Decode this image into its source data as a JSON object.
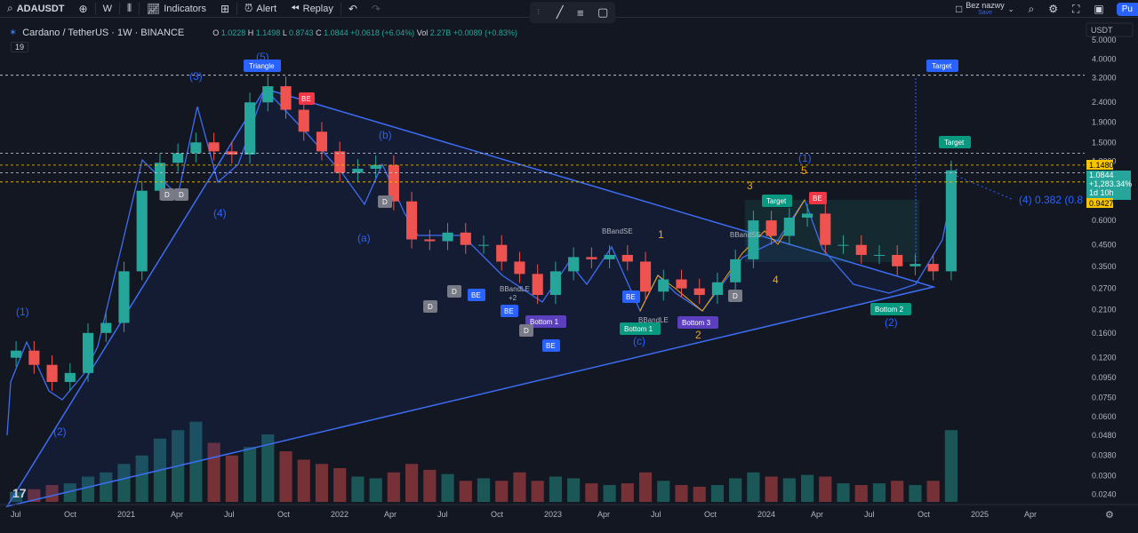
{
  "toolbar": {
    "symbol": "ADAUSDT",
    "interval": "W",
    "indicators_label": "Indicators",
    "alert_label": "Alert",
    "replay_label": "Replay",
    "layout_name": "Bez nazwy",
    "save_label": "Save",
    "publish_label": "Pu"
  },
  "legend": {
    "title": "Cardano / TetherUS · 1W · BINANCE",
    "o_label": "O",
    "o": "1.0228",
    "h_label": "H",
    "h": "1.1498",
    "l_label": "L",
    "l": "0.8743",
    "c_label": "C",
    "c": "1.0844",
    "change": "+0.0618 (+6.04%)",
    "vol_label": "Vol",
    "vol": "2.27B",
    "vol_change": "+0.0089 (+0.83%)",
    "indicator_count": "19"
  },
  "price_axis": {
    "currency": "USDT",
    "ticks": [
      "5.0000",
      "4.0000",
      "3.2000",
      "2.4000",
      "1.9000",
      "1.5000",
      "1.2000",
      "0.6000",
      "0.4500",
      "0.3500",
      "0.2700",
      "0.2100",
      "0.1600",
      "0.1200",
      "0.0950",
      "0.0750",
      "0.0600",
      "0.0480",
      "0.0380",
      "0.0300",
      "0.0240"
    ],
    "badges": {
      "upper": "1.1480",
      "last": "1.0844",
      "pct": "+1,283.34%",
      "countdown": "1d 10h",
      "lower": "0.9427"
    }
  },
  "time_axis": {
    "labels": [
      "Jul",
      "Oct",
      "2021",
      "Apr",
      "Jul",
      "Oct",
      "2022",
      "Apr",
      "Jul",
      "Oct",
      "2023",
      "Apr",
      "Jul",
      "Oct",
      "2024",
      "Apr",
      "Jul",
      "Oct",
      "2025",
      "Apr"
    ]
  },
  "annotations": {
    "wave_labels": [
      "(3)",
      "(5)",
      "(b)",
      "(4)",
      "(a)",
      "(1)",
      "(2)",
      "(c)",
      "(1)",
      "(2)"
    ],
    "orange_labels": [
      "1",
      "2",
      "3",
      "4",
      "5"
    ],
    "tags": {
      "triangle": "Triangle",
      "target_top": "Target",
      "target_mid": "Target",
      "target_small": "Target",
      "bottom1": "Bottom 1",
      "bottom2": "Bottom 2",
      "bottom3": "Bottom 3",
      "bottom_teal": "Bottom 1",
      "be": "BE",
      "d": "D",
      "bbandle": "BBandLE",
      "bbandse": "BBandSE",
      "plus2": "+2",
      "fib_label": "(4) 0.382 (0.8"
    }
  },
  "chart_data": {
    "type": "candlestick",
    "symbol": "Cardano / TetherUS",
    "interval": "1W",
    "exchange": "BINANCE",
    "y_scale": "log",
    "ylim": [
      0.022,
      5.6
    ],
    "last": {
      "open": 1.0228,
      "high": 1.1498,
      "low": 0.8743,
      "close": 1.0844
    },
    "x": [
      "2020-07",
      "2020-08",
      "2020-09",
      "2020-10",
      "2020-11",
      "2020-12",
      "2021-01",
      "2021-02",
      "2021-03",
      "2021-04",
      "2021-05",
      "2021-06",
      "2021-07",
      "2021-08",
      "2021-09",
      "2021-10",
      "2021-11",
      "2021-12",
      "2022-01",
      "2022-02",
      "2022-03",
      "2022-04",
      "2022-05",
      "2022-06",
      "2022-07",
      "2022-08",
      "2022-09",
      "2022-10",
      "2022-11",
      "2022-12",
      "2023-01",
      "2023-02",
      "2023-03",
      "2023-04",
      "2023-05",
      "2023-06",
      "2023-07",
      "2023-08",
      "2023-09",
      "2023-10",
      "2023-11",
      "2023-12",
      "2024-01",
      "2024-02",
      "2024-03",
      "2024-04",
      "2024-05",
      "2024-06",
      "2024-07",
      "2024-08",
      "2024-09",
      "2024-10",
      "2024-11"
    ],
    "close": [
      0.13,
      0.11,
      0.09,
      0.1,
      0.16,
      0.18,
      0.33,
      0.85,
      1.18,
      1.32,
      1.5,
      1.35,
      1.3,
      2.4,
      2.9,
      2.2,
      1.7,
      1.35,
      1.05,
      1.1,
      1.15,
      0.75,
      0.48,
      0.47,
      0.52,
      0.45,
      0.45,
      0.37,
      0.32,
      0.25,
      0.33,
      0.39,
      0.38,
      0.4,
      0.37,
      0.26,
      0.3,
      0.27,
      0.25,
      0.29,
      0.38,
      0.6,
      0.5,
      0.62,
      0.65,
      0.45,
      0.45,
      0.4,
      0.4,
      0.35,
      0.36,
      0.33,
      1.08
    ],
    "volume": [
      0.12,
      0.15,
      0.2,
      0.22,
      0.3,
      0.35,
      0.45,
      0.55,
      0.75,
      0.85,
      0.95,
      0.7,
      0.55,
      0.65,
      0.8,
      0.6,
      0.5,
      0.45,
      0.4,
      0.3,
      0.28,
      0.35,
      0.45,
      0.38,
      0.33,
      0.25,
      0.28,
      0.25,
      0.35,
      0.25,
      0.3,
      0.28,
      0.22,
      0.2,
      0.22,
      0.35,
      0.25,
      0.2,
      0.18,
      0.2,
      0.28,
      0.35,
      0.3,
      0.28,
      0.32,
      0.3,
      0.22,
      0.2,
      0.22,
      0.25,
      0.2,
      0.25,
      0.85
    ],
    "price_lines": [
      3.3,
      1.32,
      1.148,
      1.05,
      0.9427
    ]
  }
}
